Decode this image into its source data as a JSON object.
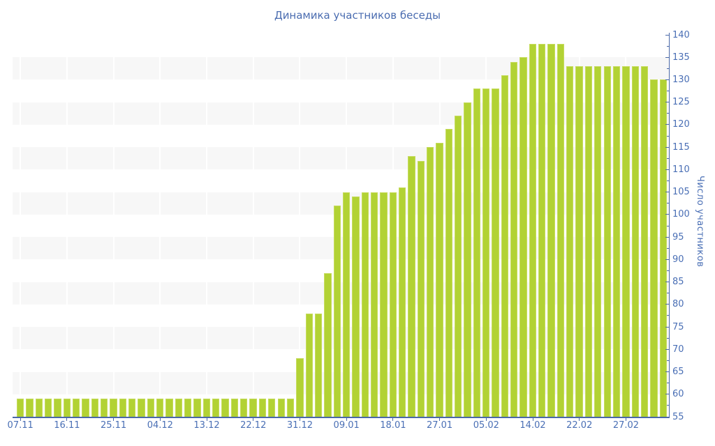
{
  "chart_data": {
    "type": "bar",
    "title": "Динамика участников беседы",
    "ylabel": "Число участников",
    "xlabel": "",
    "ylim": [
      55,
      140
    ],
    "y_tick_step": 5,
    "y_minor_tick_step": 2.5,
    "y_ticks": [
      55,
      60,
      65,
      70,
      75,
      80,
      85,
      90,
      95,
      100,
      105,
      110,
      115,
      120,
      125,
      130,
      135,
      140
    ],
    "grid": "horizontal-stripes",
    "legend": null,
    "x_tick_every": 5,
    "x_tick_labels": [
      "07.11",
      "16.11",
      "25.11",
      "04.12",
      "13.12",
      "22.12",
      "31.12",
      "09.01",
      "18.01",
      "27.01",
      "05.02",
      "14.02",
      "22.02",
      "27.02"
    ],
    "values": [
      59,
      59,
      59,
      59,
      59,
      59,
      59,
      59,
      59,
      59,
      59,
      59,
      59,
      59,
      59,
      59,
      59,
      59,
      59,
      59,
      59,
      59,
      59,
      59,
      59,
      59,
      59,
      59,
      59,
      59,
      68,
      78,
      78,
      87,
      102,
      105,
      104,
      105,
      105,
      105,
      105,
      106,
      113,
      112,
      115,
      116,
      119,
      122,
      125,
      128,
      128,
      128,
      131,
      134,
      135,
      138,
      138,
      138,
      138,
      133,
      133,
      133,
      133,
      133,
      133,
      133,
      133,
      133,
      130,
      130
    ],
    "colors": {
      "bar_fill": "#b2d234",
      "bar_border": "#c6dc5e",
      "stripe": "#f7f7f7",
      "axis": "#4a68a8",
      "text": "#4a6fb5",
      "background": "#ffffff"
    }
  }
}
